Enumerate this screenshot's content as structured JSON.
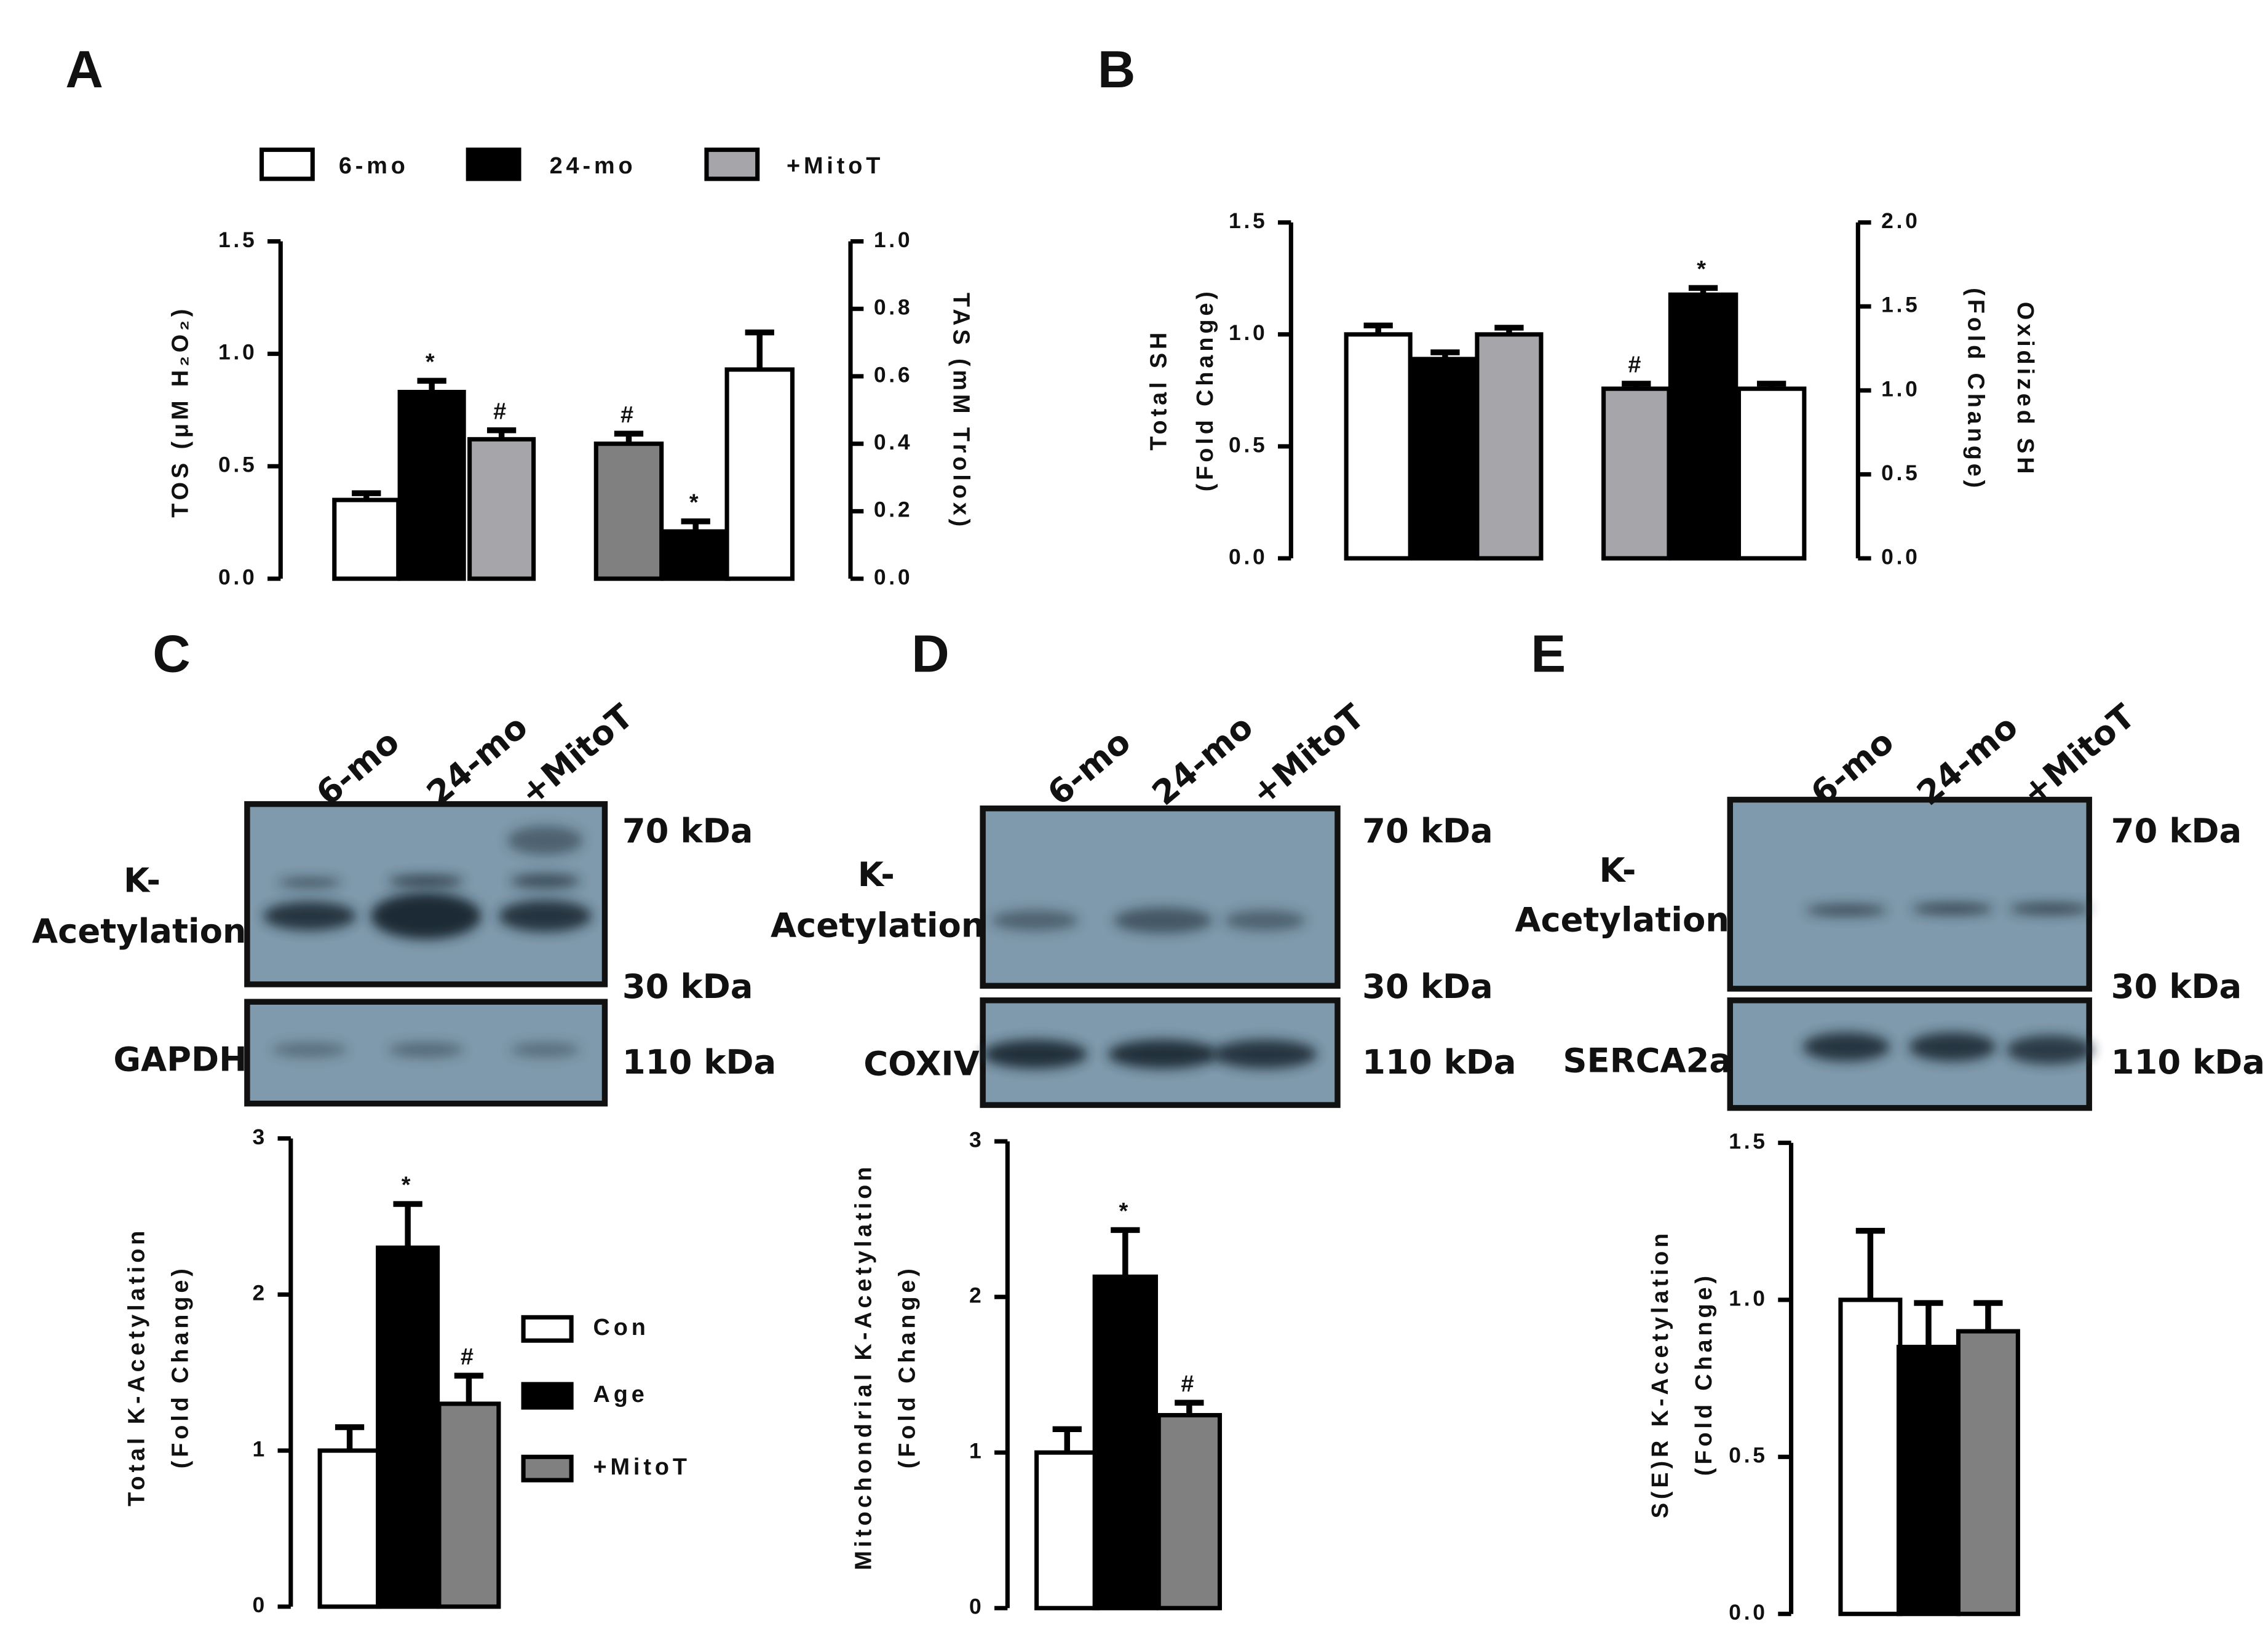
{
  "panel_labels": [
    "A",
    "B",
    "C",
    "D",
    "E"
  ],
  "blots": [
    {
      "lanes": [
        "6-mo",
        "24-mo",
        "+MitoT"
      ],
      "target_label": [
        "K-",
        "Acetylation"
      ],
      "loading_label": "GAPDH",
      "markers": [
        "70 kDa",
        "30 kDa",
        "110 kDa"
      ]
    },
    {
      "lanes": [
        "6-mo",
        "24-mo",
        "+MitoT"
      ],
      "target_label": [
        "K-",
        "Acetylation"
      ],
      "loading_label": "COXIV",
      "markers": [
        "70 kDa",
        "30 kDa",
        "110 kDa"
      ]
    },
    {
      "lanes": [
        "6-mo",
        "24-mo",
        "+MitoT"
      ],
      "target_label": [
        "K-",
        "Acetylation"
      ],
      "loading_label": "SERCA2a",
      "markers": [
        "70 kDa",
        "30 kDa",
        "110 kDa"
      ]
    }
  ],
  "chart_data": [
    {
      "type": "bar",
      "legend": [
        {
          "name": "6-mo",
          "color": "#ffffff"
        },
        {
          "name": "24-mo",
          "color": "#000000"
        },
        {
          "name": "+MitoT",
          "color": "#a6a6aa"
        }
      ],
      "axes": [
        {
          "side": "left",
          "label": [
            "TOS (μM H₂O₂)"
          ],
          "ylim": [
            0,
            1.5
          ],
          "yticks": [
            {
              "value": 0,
              "label": "0.0"
            },
            0.5,
            {
              "value": 1,
              "label": "1.0"
            },
            1.5
          ],
          "bars": [
            {
              "color": "#ffffff",
              "value": 0.35,
              "error": 0.03
            },
            {
              "color": "#000000",
              "value": 0.83,
              "error": 0.05,
              "annotation": "*"
            },
            {
              "color": "#a6a6aa",
              "value": 0.62,
              "error": 0.04,
              "annotation": "#"
            }
          ]
        },
        {
          "side": "right",
          "label": [
            "TAS (mM Trolox)"
          ],
          "ylim": [
            0,
            1
          ],
          "yticks": [
            {
              "value": 0,
              "label": "0.0"
            },
            0.2,
            0.4,
            0.6,
            0.8,
            {
              "value": 1,
              "label": "1.0"
            }
          ],
          "bars": [
            {
              "color": "#808080",
              "value": 0.4,
              "error": 0.03,
              "annotation": "#"
            },
            {
              "color": "#000000",
              "value": 0.14,
              "error": 0.03,
              "annotation": "*"
            },
            {
              "color": "#ffffff",
              "value": 0.62,
              "error": 0.11
            }
          ]
        }
      ]
    },
    {
      "type": "bar",
      "axes": [
        {
          "side": "left",
          "label": [
            "Total SH",
            "(Fold Change)"
          ],
          "ylim": [
            0,
            1.5
          ],
          "yticks": [
            {
              "value": 0,
              "label": "0.0"
            },
            0.5,
            {
              "value": 1,
              "label": "1.0"
            },
            1.5
          ],
          "bars": [
            {
              "color": "#ffffff",
              "value": 1.0,
              "error": 0.04
            },
            {
              "color": "#000000",
              "value": 0.89,
              "error": 0.03
            },
            {
              "color": "#a6a6aa",
              "value": 1.0,
              "error": 0.03
            }
          ]
        },
        {
          "side": "right",
          "label": [
            "Oxidized SH",
            "(Fold Change)"
          ],
          "ylim": [
            0,
            2
          ],
          "yticks": [
            {
              "value": 0,
              "label": "0.0"
            },
            0.5,
            {
              "value": 1,
              "label": "1.0"
            },
            1.5,
            {
              "value": 2,
              "label": "2.0"
            }
          ],
          "bars": [
            {
              "color": "#a6a6aa",
              "value": 1.01,
              "error": 0.03,
              "annotation": "#"
            },
            {
              "color": "#000000",
              "value": 1.57,
              "error": 0.04,
              "annotation": "*"
            },
            {
              "color": "#ffffff",
              "value": 1.01,
              "error": 0.03
            }
          ]
        }
      ]
    },
    {
      "type": "bar",
      "legend": [
        {
          "name": "Con",
          "color": "#ffffff"
        },
        {
          "name": "Age",
          "color": "#000000"
        },
        {
          "name": "+MitoT",
          "color": "#808080"
        }
      ],
      "axes": [
        {
          "side": "left",
          "label": [
            "Total K-Acetylation",
            "(Fold Change)"
          ],
          "ylim": [
            0,
            3
          ],
          "yticks": [
            0,
            1,
            2,
            3
          ],
          "bars": [
            {
              "color": "#ffffff",
              "value": 1.0,
              "error": 0.15
            },
            {
              "color": "#000000",
              "value": 2.3,
              "error": 0.28,
              "annotation": "*"
            },
            {
              "color": "#808080",
              "value": 1.3,
              "error": 0.18,
              "annotation": "#"
            }
          ]
        }
      ]
    },
    {
      "type": "bar",
      "axes": [
        {
          "side": "left",
          "label": [
            "Mitochondrial K-Acetylation",
            "(Fold Change)"
          ],
          "ylim": [
            0,
            3
          ],
          "yticks": [
            0,
            1,
            2,
            3
          ],
          "bars": [
            {
              "color": "#ffffff",
              "value": 1.0,
              "error": 0.15
            },
            {
              "color": "#000000",
              "value": 2.13,
              "error": 0.3,
              "annotation": "*"
            },
            {
              "color": "#808080",
              "value": 1.24,
              "error": 0.08,
              "annotation": "#"
            }
          ]
        }
      ]
    },
    {
      "type": "bar",
      "axes": [
        {
          "side": "left",
          "label": [
            "S(E)R K-Acetylation",
            "(Fold Change)"
          ],
          "ylim": [
            0,
            1.5
          ],
          "yticks": [
            {
              "value": 0,
              "label": "0.0"
            },
            0.5,
            {
              "value": 1,
              "label": "1.0"
            },
            1.5
          ],
          "bars": [
            {
              "color": "#ffffff",
              "value": 1.0,
              "error": 0.22
            },
            {
              "color": "#000000",
              "value": 0.85,
              "error": 0.14
            },
            {
              "color": "#808080",
              "value": 0.9,
              "error": 0.09
            }
          ]
        }
      ]
    }
  ]
}
